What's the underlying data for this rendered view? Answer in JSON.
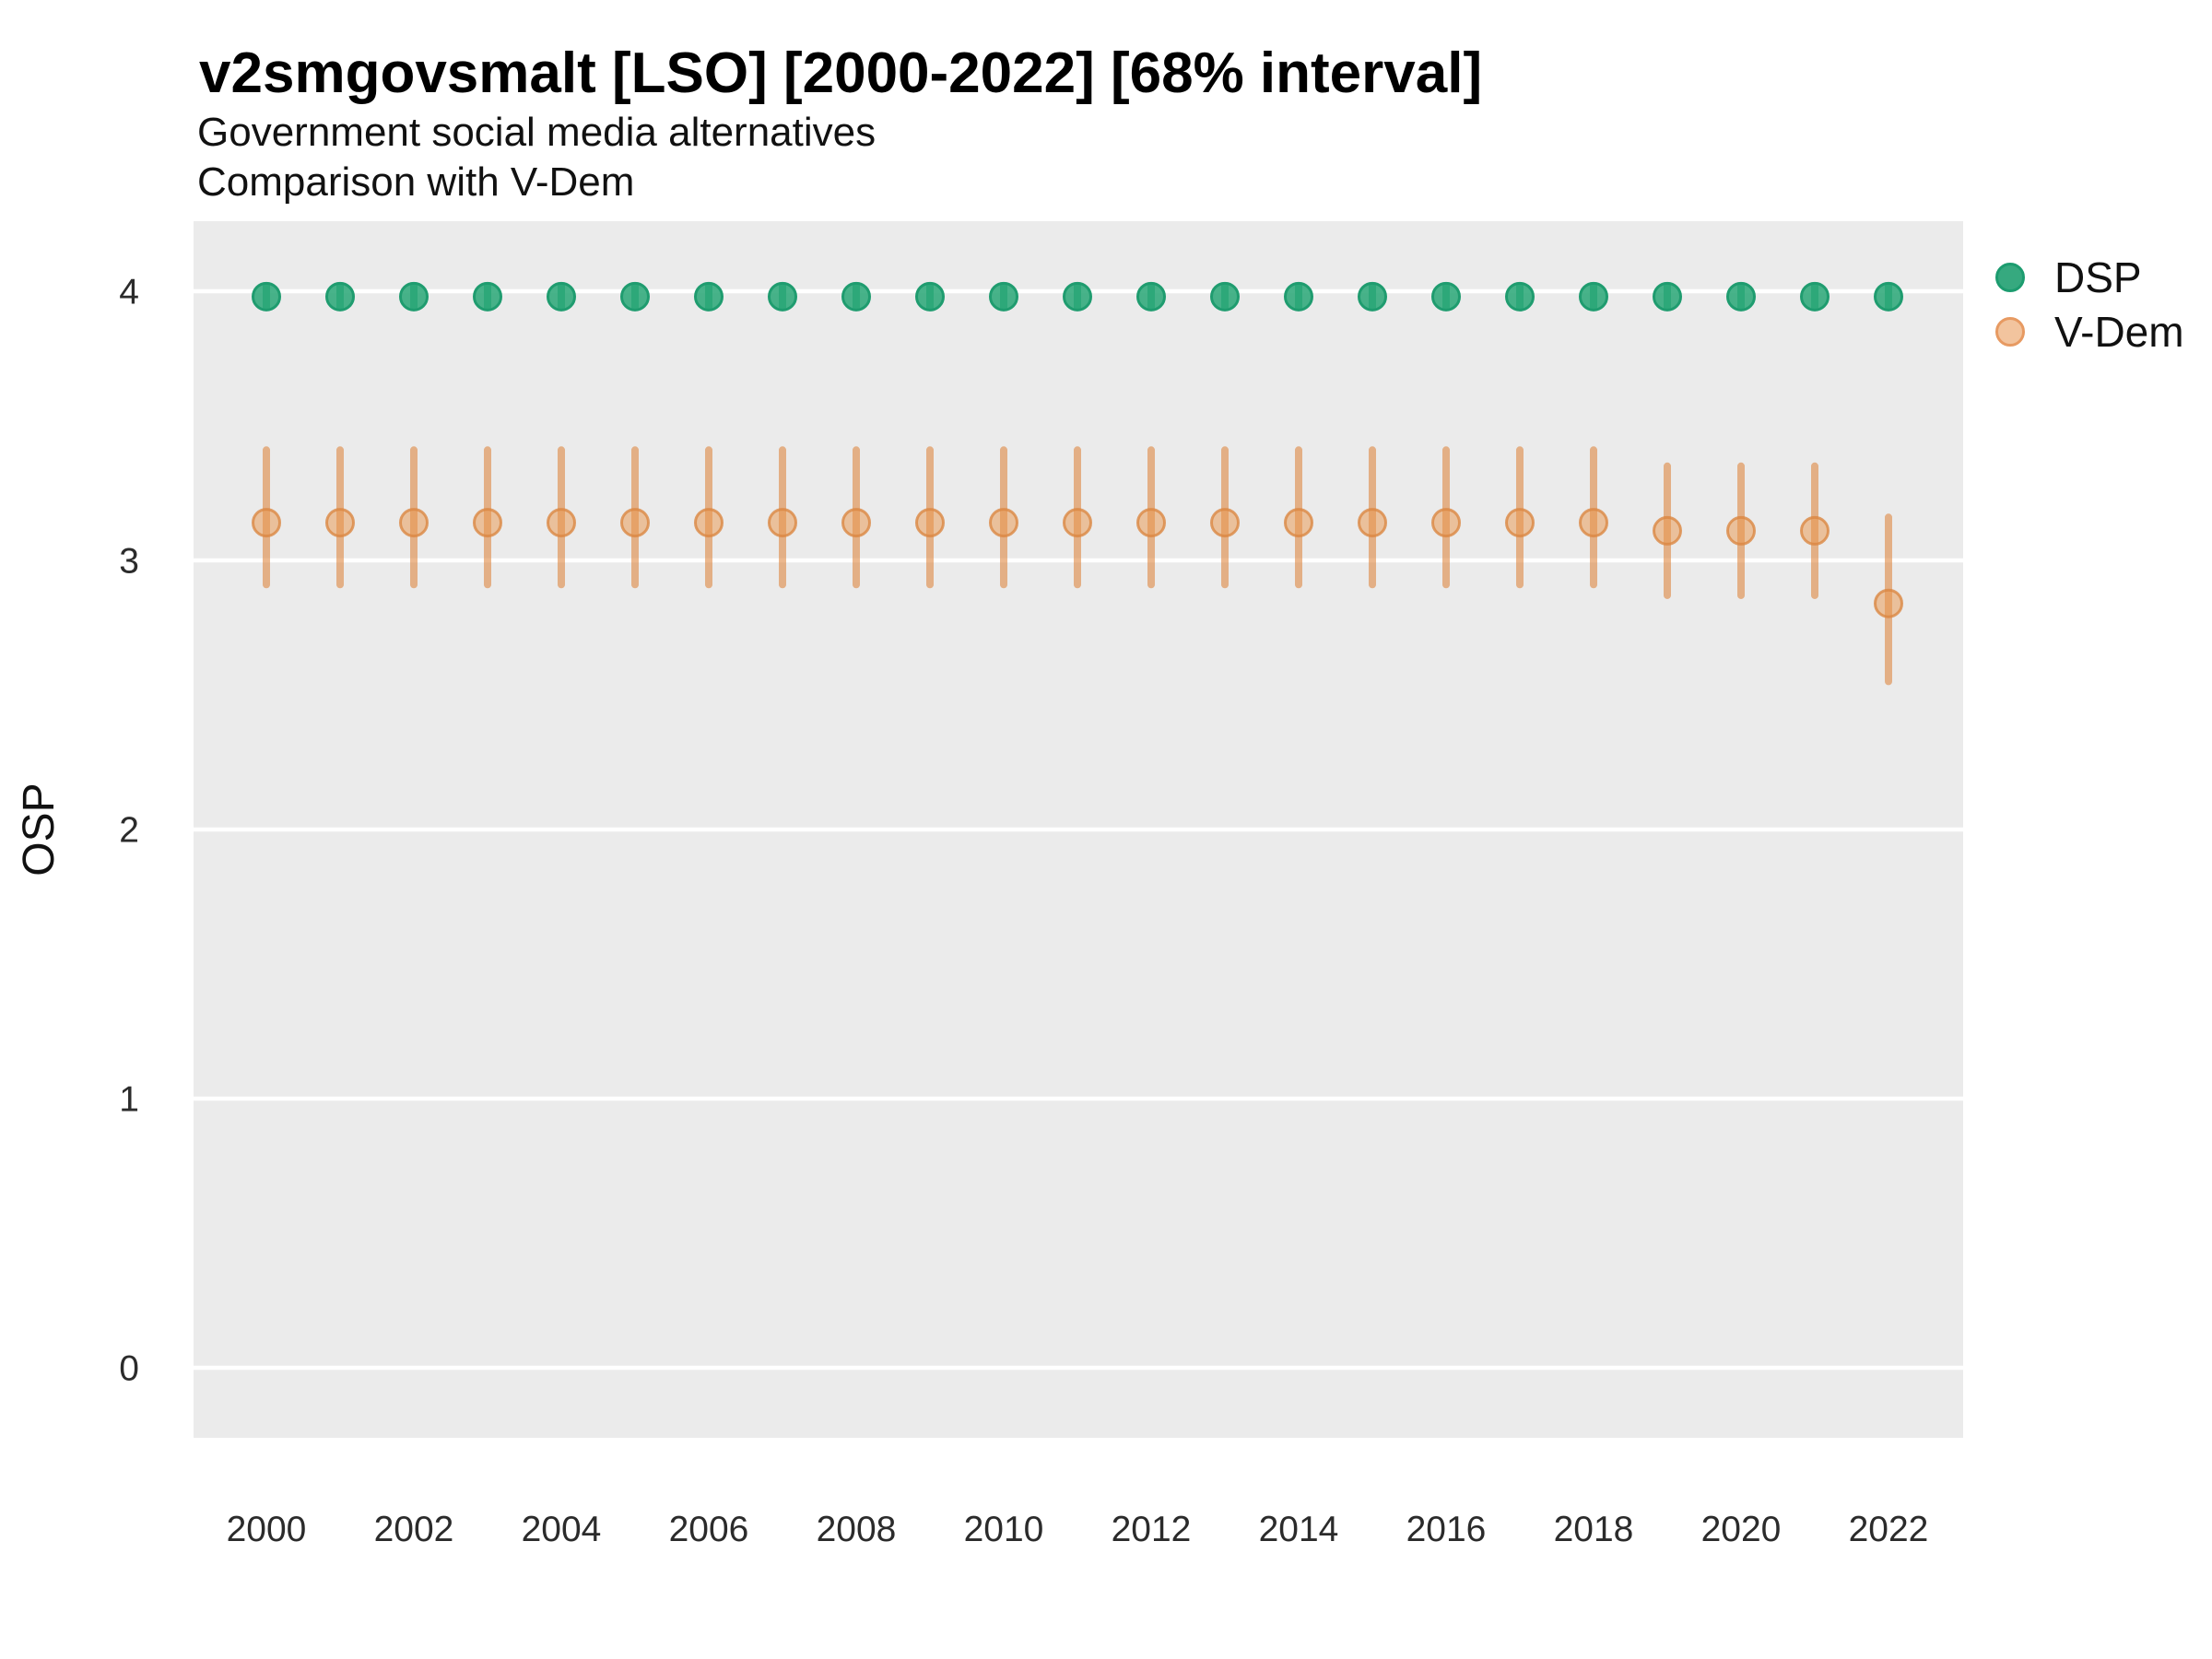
{
  "title": "v2smgovsmalt [LSO] [2000-2022] [68% interval]",
  "subtitle1": "Government social media alternatives",
  "subtitle2": "Comparison with V-Dem",
  "y_axis_title": "OSP",
  "legend": {
    "position": "right",
    "items": [
      {
        "label": "DSP",
        "fill": "#36A97F",
        "stroke": "#1C9C6F"
      },
      {
        "label": "V-Dem",
        "fill": "#F2C49E",
        "stroke": "#E79A62"
      }
    ]
  },
  "colors": {
    "panel_bg": "#EBEBEB",
    "grid": "#FFFFFF",
    "series": [
      {
        "bar": "#27A173",
        "fill": "rgba(47,168,122,0.88)",
        "stroke": "#1F9C6F"
      },
      {
        "bar": "rgba(221,126,50,0.55)",
        "fill": "rgba(233,150,75,0.5)",
        "stroke": "rgba(219,135,66,0.8)"
      }
    ]
  },
  "chart_data": {
    "type": "scatter",
    "title": "v2smgovsmalt [LSO] [2000-2022] [68% interval]",
    "subtitle": [
      "Government social media alternatives",
      "Comparison with V-Dem"
    ],
    "xlabel": "",
    "ylabel": "OSP",
    "interval": "68%",
    "grid": "horizontal-major-only",
    "legend_position": "right",
    "x": [
      2000,
      2001,
      2002,
      2003,
      2004,
      2005,
      2006,
      2007,
      2008,
      2009,
      2010,
      2011,
      2012,
      2013,
      2014,
      2015,
      2016,
      2017,
      2018,
      2019,
      2020,
      2021,
      2022
    ],
    "x_ticks": [
      2000,
      2002,
      2004,
      2006,
      2008,
      2010,
      2012,
      2014,
      2016,
      2018,
      2020,
      2022
    ],
    "y_ticks": [
      0,
      1,
      2,
      3,
      4
    ],
    "ylim": [
      -0.26,
      4.26
    ],
    "series": [
      {
        "name": "DSP",
        "est": [
          3.98,
          3.98,
          3.98,
          3.98,
          3.98,
          3.98,
          3.98,
          3.98,
          3.98,
          3.98,
          3.98,
          3.98,
          3.98,
          3.98,
          3.98,
          3.98,
          3.98,
          3.98,
          3.98,
          3.98,
          3.98,
          3.98,
          3.98
        ],
        "lo": [
          3.94,
          3.94,
          3.94,
          3.94,
          3.94,
          3.94,
          3.94,
          3.94,
          3.94,
          3.94,
          3.94,
          3.94,
          3.94,
          3.94,
          3.94,
          3.94,
          3.94,
          3.94,
          3.94,
          3.94,
          3.94,
          3.94,
          3.94
        ],
        "hi": [
          4.02,
          4.02,
          4.02,
          4.02,
          4.02,
          4.02,
          4.02,
          4.02,
          4.02,
          4.02,
          4.02,
          4.02,
          4.02,
          4.02,
          4.02,
          4.02,
          4.02,
          4.02,
          4.02,
          4.02,
          4.02,
          4.02,
          4.02
        ]
      },
      {
        "name": "V-Dem",
        "est": [
          3.14,
          3.14,
          3.14,
          3.14,
          3.14,
          3.14,
          3.14,
          3.14,
          3.14,
          3.14,
          3.14,
          3.14,
          3.14,
          3.14,
          3.14,
          3.14,
          3.14,
          3.14,
          3.14,
          3.11,
          3.11,
          3.11,
          2.84
        ],
        "lo": [
          2.91,
          2.91,
          2.91,
          2.91,
          2.91,
          2.91,
          2.91,
          2.91,
          2.91,
          2.91,
          2.91,
          2.91,
          2.91,
          2.91,
          2.91,
          2.91,
          2.91,
          2.91,
          2.91,
          2.87,
          2.87,
          2.87,
          2.55
        ],
        "hi": [
          3.41,
          3.41,
          3.41,
          3.41,
          3.41,
          3.41,
          3.41,
          3.41,
          3.41,
          3.41,
          3.41,
          3.41,
          3.41,
          3.41,
          3.41,
          3.41,
          3.41,
          3.41,
          3.41,
          3.35,
          3.35,
          3.35,
          3.16
        ]
      }
    ]
  }
}
